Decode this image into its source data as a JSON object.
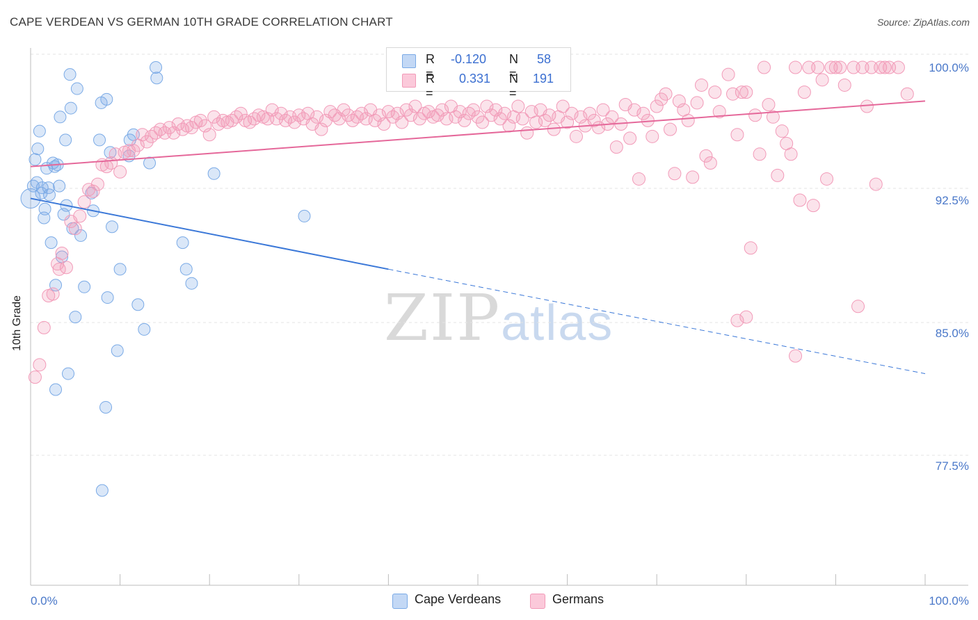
{
  "title": "CAPE VERDEAN VS GERMAN 10TH GRADE CORRELATION CHART",
  "source": "Source: ZipAtlas.com",
  "watermark": {
    "zip": "ZIP",
    "atlas": "atlas"
  },
  "colors": {
    "blue": "#7aaae6",
    "blue_line": "#3b78d8",
    "pink": "#f29ab8",
    "pink_line": "#e5689a",
    "tick": "#4a78c9"
  },
  "legend": {
    "rows": [
      {
        "r_label": "R =",
        "r_value": "-0.120",
        "n_label": "N =",
        "n_value": "58"
      },
      {
        "r_label": "R =",
        "r_value": "0.331",
        "n_label": "N =",
        "n_value": "191"
      }
    ]
  },
  "bottom_legend": [
    {
      "label": "Cape Verdeans"
    },
    {
      "label": "Germans"
    }
  ],
  "chart_data": {
    "type": "scatter",
    "title": "CAPE VERDEAN VS GERMAN 10TH GRADE CORRELATION CHART",
    "xlabel": "",
    "ylabel": "10th Grade",
    "xlim": [
      0,
      100
    ],
    "ylim": [
      70,
      101.2
    ],
    "x_tick_labels": [
      "0.0%",
      "100.0%"
    ],
    "y_ticks": [
      {
        "value": 100.0,
        "label": "100.0%"
      },
      {
        "value": 92.5,
        "label": "92.5%"
      },
      {
        "value": 85.0,
        "label": "85.0%"
      },
      {
        "value": 77.5,
        "label": "77.5%"
      }
    ],
    "series": [
      {
        "name": "Cape Verdeans",
        "r": -0.12,
        "n": 58,
        "trend": {
          "x0": 0,
          "y0": 92.6,
          "x1": 40,
          "y1": 88.6,
          "dash_x1": 100,
          "dash_y1": 82.7
        },
        "points": [
          [
            0,
            92.6
          ],
          [
            0.3,
            93.3
          ],
          [
            0.5,
            94.8
          ],
          [
            0.7,
            93.5
          ],
          [
            0.8,
            95.4
          ],
          [
            1,
            96.4
          ],
          [
            1.2,
            92.9
          ],
          [
            1.3,
            93.2
          ],
          [
            1.5,
            91.5
          ],
          [
            1.6,
            92
          ],
          [
            1.8,
            94.3
          ],
          [
            2,
            93.2
          ],
          [
            2.1,
            92.8
          ],
          [
            2.3,
            90.1
          ],
          [
            2.5,
            94.6
          ],
          [
            2.7,
            94.4
          ],
          [
            2.8,
            87.7
          ],
          [
            3,
            94.5
          ],
          [
            3.2,
            93.3
          ],
          [
            3.3,
            97.2
          ],
          [
            3.5,
            89.3
          ],
          [
            3.7,
            91.7
          ],
          [
            3.9,
            95.9
          ],
          [
            4,
            92.2
          ],
          [
            4.2,
            82.7
          ],
          [
            4.4,
            99.6
          ],
          [
            4.5,
            97.7
          ],
          [
            4.7,
            90.9
          ],
          [
            5,
            85.9
          ],
          [
            5.2,
            98.8
          ],
          [
            5.6,
            90.5
          ],
          [
            6,
            87.6
          ],
          [
            6.8,
            92.9
          ],
          [
            7,
            91.9
          ],
          [
            7.7,
            95.9
          ],
          [
            7.9,
            98
          ],
          [
            8,
            76.1
          ],
          [
            8.4,
            80.8
          ],
          [
            8.5,
            98.2
          ],
          [
            8.6,
            87
          ],
          [
            8.9,
            95.2
          ],
          [
            9.1,
            91
          ],
          [
            9.7,
            84
          ],
          [
            10,
            88.6
          ],
          [
            11,
            95
          ],
          [
            11.1,
            95.9
          ],
          [
            11.5,
            96.2
          ],
          [
            12,
            86.6
          ],
          [
            12.7,
            85.2
          ],
          [
            13.3,
            94.6
          ],
          [
            14,
            100
          ],
          [
            14.1,
            99.4
          ],
          [
            17,
            90.1
          ],
          [
            17.4,
            88.6
          ],
          [
            18,
            87.8
          ],
          [
            20.5,
            94
          ],
          [
            30.6,
            91.6
          ],
          [
            2.8,
            81.8
          ]
        ]
      },
      {
        "name": "Germans",
        "r": 0.331,
        "n": 191,
        "trend": {
          "x0": 0,
          "y0": 94.4,
          "x1": 100,
          "y1": 98.1
        },
        "points": [
          [
            0.5,
            82.5
          ],
          [
            1,
            83.2
          ],
          [
            1.5,
            85.3
          ],
          [
            2,
            87.1
          ],
          [
            2.5,
            87.2
          ],
          [
            3,
            88.9
          ],
          [
            3.2,
            88.6
          ],
          [
            3.5,
            89.5
          ],
          [
            4,
            88.7
          ],
          [
            4.5,
            91.3
          ],
          [
            5,
            90.9
          ],
          [
            5.5,
            91.6
          ],
          [
            6,
            92.4
          ],
          [
            6.5,
            93.1
          ],
          [
            7,
            93
          ],
          [
            7.5,
            93.4
          ],
          [
            8,
            94.5
          ],
          [
            8.5,
            94.4
          ],
          [
            9,
            94.6
          ],
          [
            9.5,
            95.1
          ],
          [
            10,
            94.1
          ],
          [
            10.5,
            95.2
          ],
          [
            11,
            95.3
          ],
          [
            11.5,
            95.3
          ],
          [
            12,
            95.6
          ],
          [
            12.5,
            96.2
          ],
          [
            13,
            95.8
          ],
          [
            13.5,
            96.1
          ],
          [
            14,
            96.3
          ],
          [
            14.5,
            96.5
          ],
          [
            15,
            96.3
          ],
          [
            15.5,
            96.6
          ],
          [
            16,
            96.3
          ],
          [
            16.5,
            96.8
          ],
          [
            17,
            96.5
          ],
          [
            17.5,
            96.7
          ],
          [
            18,
            96.6
          ],
          [
            18.5,
            96.9
          ],
          [
            19,
            97
          ],
          [
            19.5,
            96.7
          ],
          [
            20,
            96.2
          ],
          [
            20.5,
            97.2
          ],
          [
            21,
            96.8
          ],
          [
            21.5,
            97
          ],
          [
            22,
            96.9
          ],
          [
            22.5,
            97
          ],
          [
            23,
            97.2
          ],
          [
            23.5,
            97.4
          ],
          [
            24,
            97
          ],
          [
            24.5,
            96.9
          ],
          [
            25,
            97.1
          ],
          [
            25.5,
            97.3
          ],
          [
            26,
            97.2
          ],
          [
            26.5,
            97.1
          ],
          [
            27,
            97.6
          ],
          [
            27.5,
            97.1
          ],
          [
            28,
            97.4
          ],
          [
            28.5,
            97
          ],
          [
            29,
            97.2
          ],
          [
            29.5,
            96.9
          ],
          [
            30,
            97.3
          ],
          [
            30.5,
            97.1
          ],
          [
            31,
            97.4
          ],
          [
            31.5,
            96.8
          ],
          [
            32,
            97.2
          ],
          [
            32.5,
            96.5
          ],
          [
            33,
            97
          ],
          [
            33.5,
            97.5
          ],
          [
            34,
            97.3
          ],
          [
            34.5,
            97.1
          ],
          [
            35,
            97.6
          ],
          [
            35.5,
            97.3
          ],
          [
            36,
            97
          ],
          [
            36.5,
            97.2
          ],
          [
            37,
            97.4
          ],
          [
            37.5,
            97.1
          ],
          [
            38,
            97.6
          ],
          [
            38.5,
            97
          ],
          [
            39,
            97.3
          ],
          [
            39.5,
            96.8
          ],
          [
            40,
            97.5
          ],
          [
            40.5,
            97.2
          ],
          [
            41,
            97.4
          ],
          [
            41.5,
            96.9
          ],
          [
            42,
            97.6
          ],
          [
            42.5,
            97.3
          ],
          [
            43,
            97.8
          ],
          [
            43.5,
            97.1
          ],
          [
            44,
            97.4
          ],
          [
            44.5,
            97.5
          ],
          [
            45,
            97.2
          ],
          [
            45.5,
            97.3
          ],
          [
            46,
            97.6
          ],
          [
            46.5,
            97.1
          ],
          [
            47,
            97.8
          ],
          [
            47.5,
            97.2
          ],
          [
            48,
            97.5
          ],
          [
            48.5,
            97
          ],
          [
            49,
            97.4
          ],
          [
            49.5,
            97.6
          ],
          [
            50,
            97.2
          ],
          [
            50.5,
            96.9
          ],
          [
            51,
            97.8
          ],
          [
            51.5,
            97.3
          ],
          [
            52,
            97.6
          ],
          [
            52.5,
            97.1
          ],
          [
            53,
            97.4
          ],
          [
            53.5,
            96.7
          ],
          [
            54,
            97.2
          ],
          [
            54.5,
            97.8
          ],
          [
            55,
            97.1
          ],
          [
            55.5,
            96.3
          ],
          [
            56,
            97.5
          ],
          [
            56.5,
            96.9
          ],
          [
            57,
            97.6
          ],
          [
            57.5,
            97
          ],
          [
            58,
            97.3
          ],
          [
            58.5,
            96.5
          ],
          [
            59,
            97.2
          ],
          [
            59.5,
            97.8
          ],
          [
            60,
            96.9
          ],
          [
            60.5,
            97.4
          ],
          [
            61,
            96.1
          ],
          [
            61.5,
            97.2
          ],
          [
            62,
            96.7
          ],
          [
            62.5,
            97.4
          ],
          [
            63,
            97
          ],
          [
            63.5,
            96.6
          ],
          [
            64,
            97.6
          ],
          [
            64.5,
            96.8
          ],
          [
            65,
            97.2
          ],
          [
            65.5,
            95.5
          ],
          [
            66,
            96.8
          ],
          [
            66.5,
            97.9
          ],
          [
            67,
            96
          ],
          [
            67.5,
            97.6
          ],
          [
            68,
            93.7
          ],
          [
            68.5,
            97.4
          ],
          [
            69,
            97
          ],
          [
            69.5,
            96.1
          ],
          [
            70,
            97.8
          ],
          [
            70.5,
            98.2
          ],
          [
            71,
            98.5
          ],
          [
            71.5,
            96.5
          ],
          [
            72,
            94
          ],
          [
            72.5,
            98.1
          ],
          [
            73,
            97.6
          ],
          [
            73.5,
            97
          ],
          [
            74,
            93.8
          ],
          [
            74.5,
            98
          ],
          [
            75,
            99
          ],
          [
            75.5,
            95
          ],
          [
            76,
            94.6
          ],
          [
            76.5,
            98.6
          ],
          [
            77,
            97.5
          ],
          [
            78,
            99.6
          ],
          [
            78.5,
            98.5
          ],
          [
            79,
            96.2
          ],
          [
            79.5,
            98.6
          ],
          [
            80,
            98.6
          ],
          [
            80.5,
            89.8
          ],
          [
            81,
            97.3
          ],
          [
            81.5,
            95.1
          ],
          [
            82,
            100
          ],
          [
            82.5,
            97.9
          ],
          [
            83,
            97.2
          ],
          [
            83.5,
            93.9
          ],
          [
            84,
            96.4
          ],
          [
            84.5,
            95.7
          ],
          [
            85,
            95.1
          ],
          [
            85.5,
            100
          ],
          [
            86,
            92.5
          ],
          [
            86.5,
            98.6
          ],
          [
            87,
            100
          ],
          [
            87.5,
            92.2
          ],
          [
            88,
            100
          ],
          [
            88.5,
            99.3
          ],
          [
            89,
            93.7
          ],
          [
            89.5,
            100
          ],
          [
            90,
            100
          ],
          [
            90.5,
            100
          ],
          [
            91,
            99
          ],
          [
            92,
            100
          ],
          [
            92.5,
            86.5
          ],
          [
            93,
            100
          ],
          [
            93.5,
            97.8
          ],
          [
            94,
            100
          ],
          [
            94.5,
            93.4
          ],
          [
            95,
            100
          ],
          [
            95.5,
            100
          ],
          [
            96,
            100
          ],
          [
            97,
            100
          ],
          [
            98,
            98.5
          ],
          [
            79,
            85.7
          ],
          [
            80,
            85.9
          ],
          [
            85.5,
            83.7
          ]
        ]
      }
    ]
  }
}
